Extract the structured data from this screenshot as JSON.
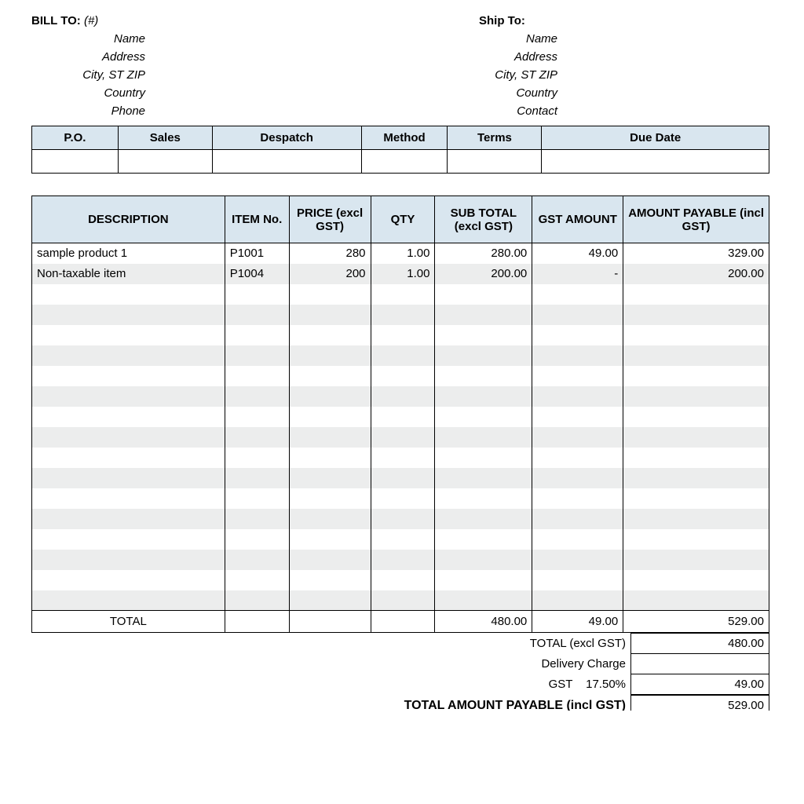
{
  "billTo": {
    "title": "BILL TO:",
    "suffix": "(#)",
    "lines": [
      "Name",
      "Address",
      "City, ST ZIP",
      "Country",
      "Phone"
    ]
  },
  "shipTo": {
    "title": "Ship To:",
    "lines": [
      "Name",
      "Address",
      "City, ST ZIP",
      "Country",
      "Contact"
    ]
  },
  "infoHeaders": [
    "P.O.",
    "Sales",
    "Despatch",
    "Method",
    "Terms",
    "Due Date"
  ],
  "infoWidths": [
    "110px",
    "120px",
    "190px",
    "110px",
    "120px",
    "290px"
  ],
  "itemsTable": {
    "headers": [
      "DESCRIPTION",
      "ITEM No.",
      "PRICE (excl GST)",
      "QTY",
      "SUB TOTAL (excl GST)",
      "GST AMOUNT",
      "AMOUNT PAYABLE (incl GST)"
    ],
    "colWidths": [
      "246px",
      "82px",
      "104px",
      "82px",
      "124px",
      "116px",
      "186px"
    ],
    "rows": [
      {
        "description": "sample product 1",
        "itemNo": "P1001",
        "price": "280",
        "qty": "1.00",
        "subTotal": "280.00",
        "gst": "49.00",
        "amount": "329.00"
      },
      {
        "description": "Non-taxable item",
        "itemNo": "P1004",
        "price": "200",
        "qty": "1.00",
        "subTotal": "200.00",
        "gst": "-",
        "amount": "200.00"
      }
    ],
    "emptyRows": 16,
    "footer": {
      "label": "TOTAL",
      "subTotal": "480.00",
      "gst": "49.00",
      "amount": "529.00"
    }
  },
  "totals": {
    "labels": {
      "exclGst": "TOTAL (excl GST)",
      "delivery": "Delivery Charge",
      "gst": "GST",
      "gstRate": "17.50%",
      "final": "TOTAL AMOUNT PAYABLE (incl GST)"
    },
    "values": {
      "exclGst": "480.00",
      "delivery": "",
      "gst": "49.00",
      "final": "529.00"
    }
  },
  "colors": {
    "headerBg": "#d9e6ef",
    "stripe": "#eceded",
    "border": "#000000"
  }
}
